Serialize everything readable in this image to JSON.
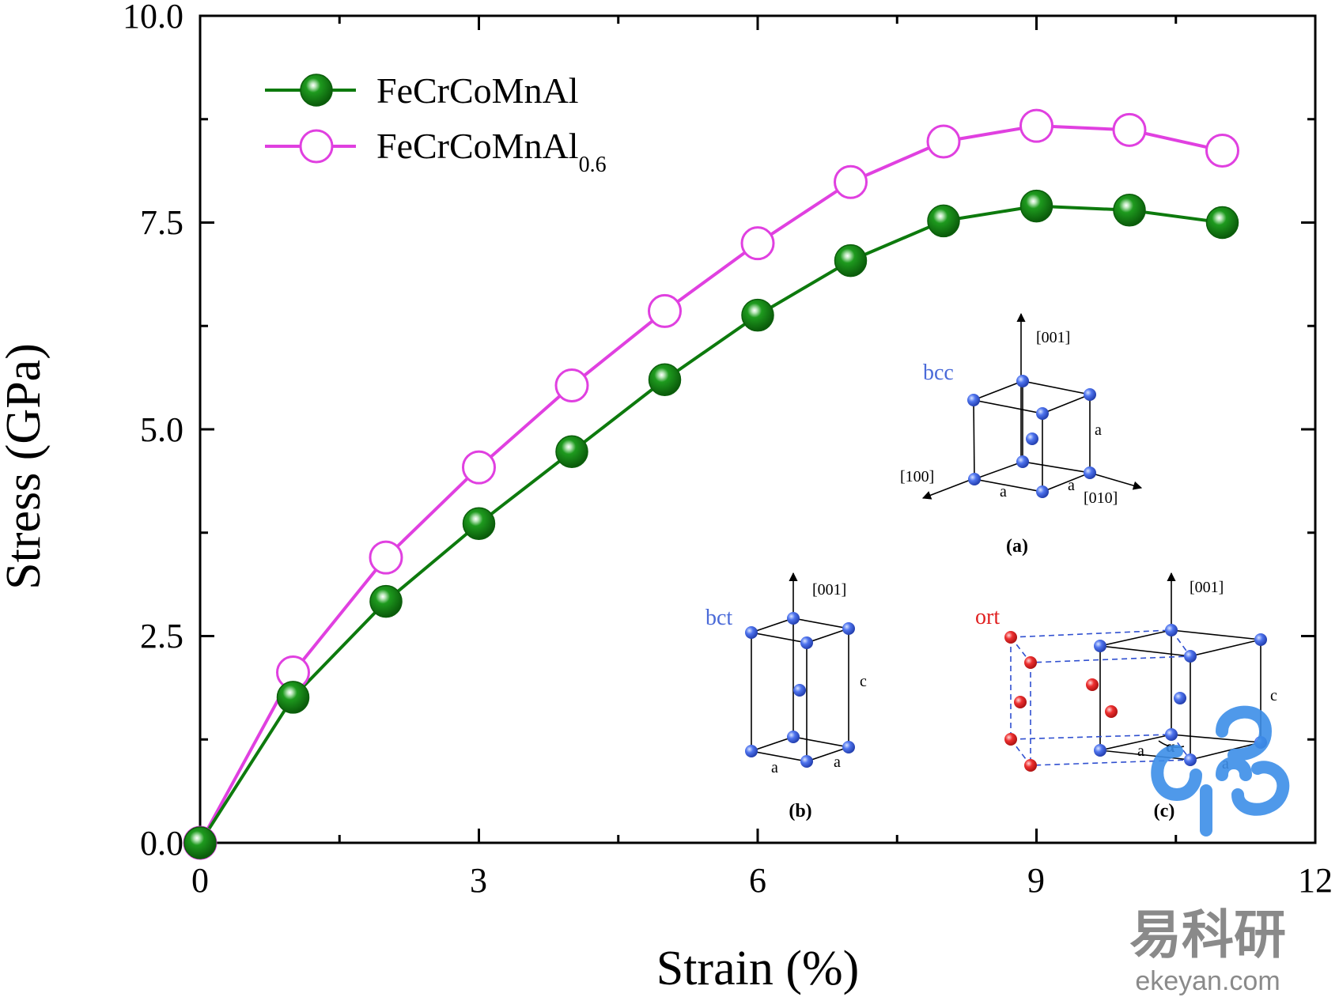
{
  "chart_data": {
    "type": "line",
    "xlabel": "Strain (%)",
    "ylabel": "Stress (GPa)",
    "xlim": [
      0,
      12
    ],
    "ylim": [
      0,
      10
    ],
    "x_ticks": [
      "0",
      "3",
      "6",
      "9",
      "12"
    ],
    "y_ticks": [
      "0.0",
      "2.5",
      "5.0",
      "7.5",
      "10.0"
    ],
    "x": [
      0,
      1,
      2,
      3,
      4,
      5,
      6,
      7,
      8,
      9,
      10,
      11
    ],
    "grid": false,
    "legend_position": "top-left",
    "series": [
      {
        "name": "FeCrCoMnAl",
        "name_sub": "",
        "color": "#0d7a0d",
        "marker": "filled-sphere",
        "values": [
          0.0,
          1.76,
          2.92,
          3.86,
          4.73,
          5.6,
          6.38,
          7.04,
          7.52,
          7.7,
          7.65,
          7.5
        ]
      },
      {
        "name": "FeCrCoMnAl",
        "name_sub": "0.6",
        "color": "#e040e0",
        "marker": "open-circle",
        "values": [
          0.0,
          2.06,
          3.45,
          4.54,
          5.53,
          6.43,
          7.25,
          7.99,
          8.48,
          8.67,
          8.62,
          8.37
        ]
      }
    ]
  },
  "insets": {
    "bcc": {
      "phase": "bcc",
      "axis_z": "[001]",
      "axis_x": "[100]",
      "axis_y": "[010]",
      "edge_a1": "a",
      "edge_a2": "a",
      "edge_a3": "a",
      "caption": "(a)"
    },
    "bct": {
      "phase": "bct",
      "axis_z": "[001]",
      "edge_c": "c",
      "edge_a1": "a",
      "edge_a2": "a",
      "caption": "(b)"
    },
    "ort": {
      "phase": "ort",
      "axis_z": "[001]",
      "edge_c": "c",
      "edge_a1": "a",
      "edge_a2": "a",
      "angle": "α",
      "caption": "(c)"
    },
    "colors": {
      "blue_atom": "#3a5ce0",
      "red_atom": "#e02020",
      "phase_blue": "#4a6ad8",
      "phase_red": "#e02020"
    }
  },
  "watermark": {
    "brand_cn": "易科研",
    "brand_url": "ekeyan.com",
    "color": "#3d8ee8"
  }
}
